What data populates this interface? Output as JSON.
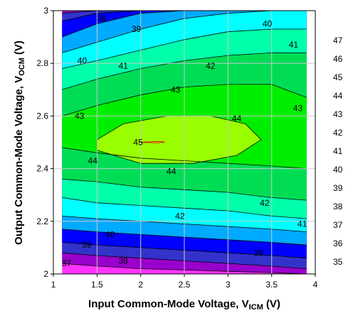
{
  "chart_data": {
    "type": "contour",
    "x_axis": {
      "label": "Input Common-Mode Voltage, V",
      "label_sub": "ICM",
      "label_unit": " (V)",
      "range": [
        1,
        4
      ],
      "ticks": [
        "1",
        "1.5",
        "2",
        "2.5",
        "3",
        "3.5",
        "4"
      ]
    },
    "y_axis": {
      "label": "Output Common-Mode Voltage, V",
      "label_sub": "OCM",
      "label_unit": " (V)",
      "range": [
        2,
        3
      ],
      "ticks": [
        "2",
        "2.2",
        "2.4",
        "2.6",
        "2.8",
        "3"
      ]
    },
    "data_x_range": [
      1.1,
      3.9
    ],
    "grid": true,
    "colorbar": {
      "levels": [
        "35",
        "36",
        "37",
        "38",
        "39",
        "40",
        "41",
        "42",
        "43",
        "44",
        "45",
        "46",
        "47"
      ],
      "colors": [
        "#ff33ff",
        "#9900cc",
        "#3333cc",
        "#0000ff",
        "#00aaff",
        "#00ffff",
        "#00ffaa",
        "#00dd55",
        "#00ee00",
        "#99ff00",
        "#ffff00",
        "#ff8800",
        "#ff0000"
      ]
    },
    "contour_bands": {
      "x": [
        1.1,
        1.5,
        2.0,
        2.5,
        3.0,
        3.5,
        3.9
      ],
      "lower": [
        {
          "level": 36,
          "y": [
            2.04,
            2.03,
            2.02,
            2.015,
            2.01,
            2.005,
            2.0
          ]
        },
        {
          "level": 37,
          "y": [
            2.08,
            2.07,
            2.06,
            2.05,
            2.04,
            2.03,
            2.02
          ]
        },
        {
          "level": 38,
          "y": [
            2.12,
            2.11,
            2.1,
            2.09,
            2.08,
            2.07,
            2.06
          ]
        },
        {
          "level": 39,
          "y": [
            2.17,
            2.16,
            2.15,
            2.14,
            2.13,
            2.12,
            2.11
          ]
        },
        {
          "level": 40,
          "y": [
            2.22,
            2.21,
            2.2,
            2.19,
            2.18,
            2.17,
            2.16
          ]
        },
        {
          "level": 41,
          "y": [
            2.29,
            2.27,
            2.26,
            2.25,
            2.24,
            2.22,
            2.21
          ]
        },
        {
          "level": 42,
          "y": [
            2.36,
            2.35,
            2.33,
            2.32,
            2.31,
            2.29,
            2.28
          ]
        },
        {
          "level": 43,
          "y": [
            2.48,
            2.46,
            2.44,
            2.43,
            2.42,
            2.41,
            2.4
          ]
        }
      ],
      "upper": [
        {
          "level": 36,
          "y": [
            3.0,
            3.0,
            3.0,
            3.0,
            3.0,
            3.0,
            3.0
          ]
        },
        {
          "level": 37,
          "y": [
            2.99,
            3.0,
            3.0,
            3.0,
            3.0,
            3.0,
            3.0
          ]
        },
        {
          "level": 38,
          "y": [
            2.96,
            2.99,
            3.0,
            3.0,
            3.0,
            3.0,
            3.0
          ]
        },
        {
          "level": 39,
          "y": [
            2.9,
            2.95,
            2.99,
            3.0,
            3.0,
            3.0,
            3.0
          ]
        },
        {
          "level": 40,
          "y": [
            2.84,
            2.88,
            2.93,
            2.97,
            2.99,
            3.0,
            3.0
          ]
        },
        {
          "level": 41,
          "y": [
            2.78,
            2.81,
            2.85,
            2.89,
            2.92,
            2.93,
            2.93
          ]
        },
        {
          "level": 42,
          "y": [
            2.7,
            2.74,
            2.78,
            2.81,
            2.83,
            2.84,
            2.84
          ]
        },
        {
          "level": 43,
          "y": [
            2.6,
            2.64,
            2.68,
            2.71,
            2.72,
            2.72,
            2.67
          ]
        }
      ],
      "level_44_region": {
        "x": [
          1.5,
          1.8,
          2.3,
          2.8,
          3.2,
          3.38,
          3.1,
          2.6,
          2.0,
          1.5
        ],
        "y": [
          2.51,
          2.57,
          2.6,
          2.6,
          2.57,
          2.51,
          2.45,
          2.42,
          2.42,
          2.47
        ]
      },
      "level_45_region": {
        "x": [
          1.98,
          2.2,
          2.28,
          2.2,
          1.98
        ],
        "y": [
          2.5,
          2.503,
          2.501,
          2.498,
          2.5
        ]
      }
    },
    "contour_labels": [
      {
        "text": "36",
        "x": 1.55,
        "y": 2.97
      },
      {
        "text": "39",
        "x": 1.95,
        "y": 2.93
      },
      {
        "text": "40",
        "x": 3.45,
        "y": 2.95
      },
      {
        "text": "40",
        "x": 1.33,
        "y": 2.81
      },
      {
        "text": "41",
        "x": 1.8,
        "y": 2.79
      },
      {
        "text": "41",
        "x": 3.75,
        "y": 2.87
      },
      {
        "text": "42",
        "x": 2.8,
        "y": 2.79
      },
      {
        "text": "43",
        "x": 2.4,
        "y": 2.7
      },
      {
        "text": "43",
        "x": 1.3,
        "y": 2.6
      },
      {
        "text": "43",
        "x": 3.8,
        "y": 2.63
      },
      {
        "text": "44",
        "x": 3.1,
        "y": 2.59
      },
      {
        "text": "45",
        "x": 1.97,
        "y": 2.5
      },
      {
        "text": "44",
        "x": 1.45,
        "y": 2.43
      },
      {
        "text": "44",
        "x": 2.35,
        "y": 2.39
      },
      {
        "text": "42",
        "x": 2.45,
        "y": 2.22
      },
      {
        "text": "42",
        "x": 3.42,
        "y": 2.27
      },
      {
        "text": "41",
        "x": 3.85,
        "y": 2.19
      },
      {
        "text": "40",
        "x": 1.65,
        "y": 2.15
      },
      {
        "text": "39",
        "x": 1.38,
        "y": 2.11
      },
      {
        "text": "39",
        "x": 3.35,
        "y": 2.08
      },
      {
        "text": "38",
        "x": 1.8,
        "y": 2.05
      },
      {
        "text": "37",
        "x": 1.15,
        "y": 2.04
      }
    ]
  }
}
